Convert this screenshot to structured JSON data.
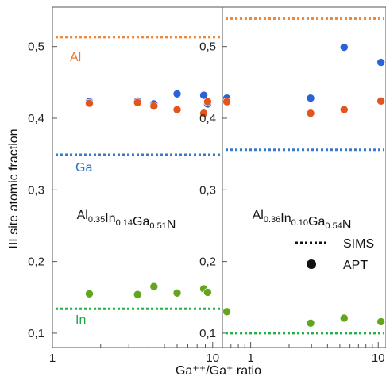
{
  "chart_data": [
    {
      "type": "scatter",
      "composition": {
        "parts": [
          [
            "Al",
            "0.35"
          ],
          [
            "In",
            "0.14"
          ],
          [
            "Ga",
            "0.51"
          ],
          [
            "N",
            ""
          ]
        ]
      },
      "xscale": "log",
      "xlim": [
        1,
        11.5
      ],
      "ylim": [
        0.08,
        0.555
      ],
      "x_ticks": [
        1,
        10
      ],
      "x_tick_labels": [
        "1",
        "10"
      ],
      "y_ticks": [
        0.1,
        0.2,
        0.3,
        0.4,
        0.5
      ],
      "y_tick_labels": [
        "0,1",
        "0,2",
        "0,3",
        "0,4",
        "0,5"
      ],
      "sims_lines": [
        {
          "element": "Al",
          "y": 0.513,
          "color": "#f0883a"
        },
        {
          "element": "Ga",
          "y": 0.349,
          "color": "#3a78c8"
        },
        {
          "element": "In",
          "y": 0.134,
          "color": "#22b04a"
        }
      ],
      "series": [
        {
          "element": "Ga",
          "color": "#2a63d6",
          "x": [
            1.7,
            3.4,
            4.3,
            6.0,
            8.8,
            9.3
          ],
          "y": [
            0.423,
            0.424,
            0.42,
            0.434,
            0.432,
            0.42
          ]
        },
        {
          "element": "Al",
          "color": "#e2551f",
          "x": [
            1.7,
            3.4,
            4.3,
            6.0,
            8.8,
            9.3
          ],
          "y": [
            0.421,
            0.422,
            0.417,
            0.412,
            0.407,
            0.423
          ]
        },
        {
          "element": "In",
          "color": "#64a51f",
          "x": [
            1.7,
            3.4,
            4.3,
            6.0,
            8.8,
            9.3
          ],
          "y": [
            0.155,
            0.154,
            0.165,
            0.156,
            0.162,
            0.157
          ]
        }
      ]
    },
    {
      "type": "scatter",
      "composition": {
        "parts": [
          [
            "Al",
            "0.36"
          ],
          [
            "In",
            "0.10"
          ],
          [
            "Ga",
            "0.54"
          ],
          [
            "N",
            ""
          ]
        ]
      },
      "xscale": "log",
      "xlim": [
        0.6,
        11.5
      ],
      "ylim": [
        0.08,
        0.555
      ],
      "x_ticks": [
        1,
        10
      ],
      "x_tick_labels": [
        "1",
        "10"
      ],
      "y_ticks": [
        0.1,
        0.2,
        0.3,
        0.4,
        0.5
      ],
      "y_tick_labels": [
        "0,1",
        "0,2",
        "0,3",
        "0,4",
        "0,5"
      ],
      "sims_lines": [
        {
          "element": "Al",
          "y": 0.539,
          "color": "#f0883a"
        },
        {
          "element": "Ga",
          "y": 0.356,
          "color": "#3a78c8"
        },
        {
          "element": "In",
          "y": 0.1,
          "color": "#22b04a"
        }
      ],
      "series": [
        {
          "element": "Ga",
          "color": "#2a63d6",
          "x": [
            0.65,
            2.95,
            5.4,
            10.5
          ],
          "y": [
            0.428,
            0.428,
            0.499,
            0.478
          ]
        },
        {
          "element": "Al",
          "color": "#e2551f",
          "x": [
            0.65,
            2.95,
            5.4,
            10.5
          ],
          "y": [
            0.423,
            0.407,
            0.412,
            0.424
          ]
        },
        {
          "element": "In",
          "color": "#64a51f",
          "x": [
            0.65,
            2.95,
            5.4,
            10.5
          ],
          "y": [
            0.13,
            0.114,
            0.121,
            0.116
          ]
        }
      ]
    }
  ],
  "labels": {
    "y_axis": "III site atomic fraction",
    "x_axis": "Ga⁺⁺/Ga⁺ ratio",
    "element_al": "Al",
    "element_ga": "Ga",
    "element_in": "In"
  },
  "legend": {
    "sims": "SIMS",
    "apt": "APT",
    "placement": "lower-right of right panel"
  }
}
